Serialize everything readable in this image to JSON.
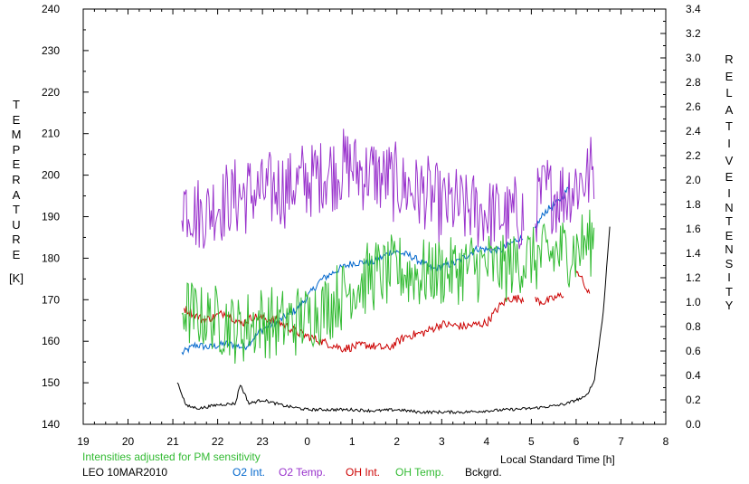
{
  "chart_data": {
    "type": "line",
    "left_axis": {
      "label_letters": [
        "T",
        "E",
        "M",
        "P",
        "E",
        "R",
        "A",
        "T",
        "U",
        "R",
        "E"
      ],
      "unit": "[K]",
      "range": [
        140,
        240
      ],
      "ticks": [
        "140",
        "150",
        "160",
        "170",
        "180",
        "190",
        "200",
        "210",
        "220",
        "230",
        "240"
      ]
    },
    "right_axis": {
      "label_letters_1": [
        "R",
        "E",
        "L",
        "A",
        "T",
        "I",
        "V",
        "E"
      ],
      "label_letters_2": [
        "I",
        "N",
        "T",
        "E",
        "N",
        "S",
        "I",
        "T",
        "Y"
      ],
      "range": [
        0.0,
        3.4
      ],
      "ticks": [
        "0.0",
        "0.2",
        "0.4",
        "0.6",
        "0.8",
        "1.0",
        "1.2",
        "1.4",
        "1.6",
        "1.8",
        "2.0",
        "2.2",
        "2.4",
        "2.6",
        "2.8",
        "3.0",
        "3.2",
        "3.4"
      ]
    },
    "x_axis": {
      "label": "Local Standard Time [h]",
      "range": [
        19,
        32
      ],
      "ticks": [
        "19",
        "20",
        "21",
        "22",
        "23",
        "0",
        "1",
        "2",
        "3",
        "4",
        "5",
        "6",
        "7",
        "8"
      ]
    },
    "note": "Intensities adjusted for PM sensitivity",
    "station": "LEO 10MAR2010",
    "series": [
      {
        "name": "O2 Int.",
        "axis": "right",
        "color": "#0066cc",
        "style": "smooth",
        "x": [
          21.2,
          21.5,
          21.8,
          22.2,
          22.6,
          23.0,
          23.3,
          23.8,
          24.3,
          24.7,
          25.0,
          25.5,
          25.9,
          26.3,
          26.8,
          27.3,
          27.8,
          28.3,
          28.7,
          28.95,
          29.3,
          29.6,
          29.85
        ],
        "y": [
          0.58,
          0.65,
          0.63,
          0.66,
          0.63,
          0.78,
          0.83,
          0.95,
          1.18,
          1.27,
          1.32,
          1.33,
          1.42,
          1.38,
          1.27,
          1.32,
          1.44,
          1.42,
          1.52,
          1.52,
          1.74,
          1.82,
          1.94
        ],
        "gaps": [
          28.95
        ]
      },
      {
        "name": "O2 Temp.",
        "axis": "left",
        "color": "#9933cc",
        "style": "noisy",
        "x": [
          21.2,
          21.6,
          22.0,
          22.5,
          23.0,
          23.5,
          24.0,
          24.5,
          25.0,
          25.5,
          26.0,
          26.5,
          27.0,
          27.5,
          28.0,
          28.5,
          28.95,
          29.3,
          29.7,
          30.0,
          30.4
        ],
        "y": [
          195,
          190,
          193,
          195,
          196,
          197,
          199,
          201,
          202,
          200,
          198,
          196,
          193,
          192,
          191,
          190,
          191,
          196,
          195,
          198,
          201
        ],
        "amp": 10,
        "gaps": [
          28.95
        ]
      },
      {
        "name": "OH Int.",
        "axis": "right",
        "color": "#cc0000",
        "style": "semi",
        "x": [
          21.25,
          21.7,
          22.2,
          22.5,
          22.8,
          23.3,
          23.8,
          24.3,
          24.8,
          25.3,
          25.8,
          26.2,
          26.6,
          27.0,
          27.5,
          28.0,
          28.3,
          28.5,
          28.95,
          29.3,
          29.7,
          30.0,
          30.3
        ],
        "y": [
          0.95,
          0.85,
          0.92,
          0.82,
          0.88,
          0.85,
          0.75,
          0.68,
          0.62,
          0.65,
          0.62,
          0.72,
          0.75,
          0.82,
          0.8,
          0.83,
          0.97,
          1.03,
          1.03,
          1.0,
          1.06,
          1.28,
          1.05
        ],
        "gaps": [
          28.95,
          29.85
        ]
      },
      {
        "name": "OH Temp.",
        "axis": "left",
        "color": "#33bb33",
        "style": "noisy",
        "x": [
          21.2,
          21.6,
          22.0,
          22.5,
          23.0,
          23.5,
          24.0,
          24.5,
          25.0,
          25.5,
          26.0,
          26.5,
          27.0,
          27.5,
          28.0,
          28.5,
          29.0,
          29.5,
          30.0,
          30.4
        ],
        "y": [
          168,
          166,
          165,
          163,
          165,
          164,
          166,
          169,
          173,
          176,
          177,
          176,
          177,
          178,
          178,
          178,
          180,
          181,
          182,
          185
        ],
        "amp": 9,
        "gaps": []
      },
      {
        "name": "Bckgrd.",
        "axis": "right",
        "color": "#000000",
        "style": "base",
        "x": [
          21.1,
          21.3,
          21.6,
          22.0,
          22.4,
          22.5,
          22.7,
          23.0,
          23.5,
          24.0,
          24.5,
          25.0,
          25.5,
          26.0,
          26.5,
          27.0,
          27.5,
          28.0,
          28.5,
          29.0,
          29.5,
          29.8,
          30.0,
          30.2,
          30.4,
          30.6,
          30.75
        ],
        "y": [
          0.35,
          0.15,
          0.13,
          0.16,
          0.17,
          0.33,
          0.17,
          0.2,
          0.15,
          0.12,
          0.12,
          0.12,
          0.11,
          0.12,
          0.1,
          0.1,
          0.1,
          0.11,
          0.12,
          0.13,
          0.15,
          0.17,
          0.2,
          0.22,
          0.35,
          0.9,
          1.62
        ],
        "gaps": []
      }
    ]
  }
}
